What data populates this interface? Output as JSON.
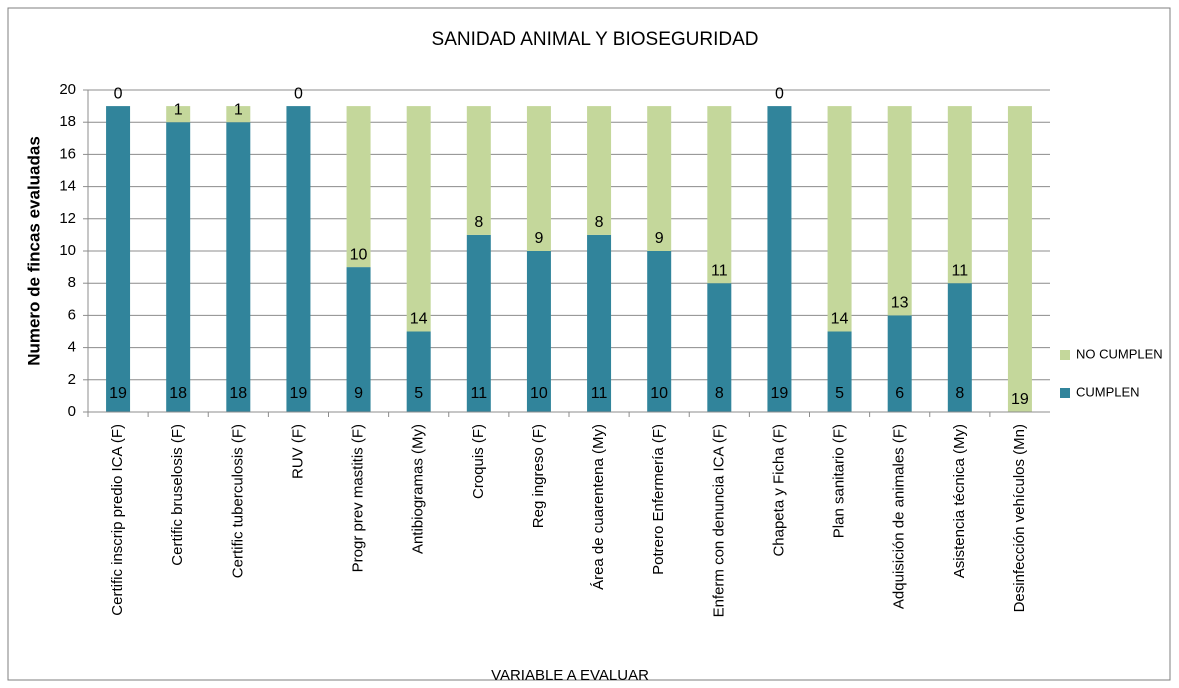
{
  "chart_data": {
    "type": "stacked_bar",
    "title": "SANIDAD ANIMAL Y BIOSEGURIDAD",
    "x_label": "VARIABLE A EVALUAR",
    "y_label": "Numero de fincas evaluadas",
    "categories": [
      "Certific inscrip predio ICA (F)",
      "Certific bruselosis (F)",
      "Certific tuberculosis (F)",
      "RUV (F)",
      "Progr prev mastitis (F)",
      "Antibiogramas (My)",
      "Croquis (F)",
      "Reg ingreso (F)",
      "Área de cuarentena (My)",
      "Potrero Enfermería (F)",
      "Enferm con denuncia ICA (F)",
      "Chapeta y Ficha (F)",
      "Plan sanitario (F)",
      "Adquisición de animales (F)",
      "Asistencia técnica (My)",
      "Desinfección vehículos (Mn)"
    ],
    "series": [
      {
        "name": "CUMPLEN",
        "color": "#31849b",
        "values": [
          19,
          18,
          18,
          19,
          9,
          5,
          11,
          10,
          11,
          10,
          8,
          19,
          5,
          6,
          8,
          0
        ]
      },
      {
        "name": "NO CUMPLEN",
        "color": "#c4d79b",
        "values": [
          0,
          1,
          1,
          0,
          10,
          14,
          8,
          9,
          8,
          9,
          11,
          0,
          14,
          13,
          11,
          19
        ]
      }
    ],
    "ylim": [
      0,
      20
    ],
    "yticks": [
      0,
      2,
      4,
      6,
      8,
      10,
      12,
      14,
      16,
      18,
      20
    ],
    "grid": true,
    "legend": "right"
  }
}
